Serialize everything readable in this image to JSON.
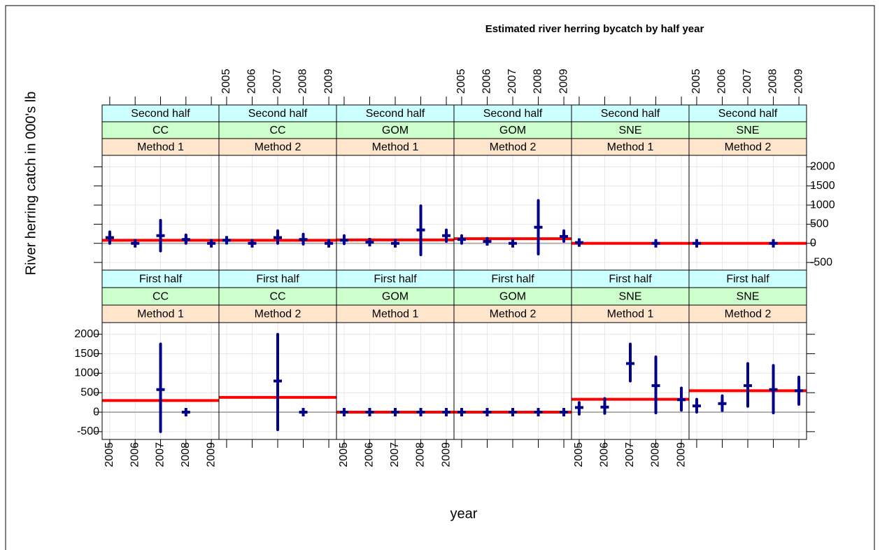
{
  "chart_data": {
    "type": "lattice",
    "title": "Estimated river herring bycatch by half year",
    "xlabel": "year",
    "ylabel": "River herring catch in 000's lb",
    "xlim": [
      2004.7,
      2009.3
    ],
    "xticks": [
      2005,
      2006,
      2007,
      2008,
      2009
    ],
    "ylim": [
      -700,
      2300
    ],
    "yticks": [
      -500,
      0,
      500,
      1000,
      1500,
      2000
    ],
    "grid": true,
    "point_color": "#00008b",
    "mean_color": "#ff0000",
    "zero_color": "#b0b0b0",
    "panels": [
      {
        "strips": [
          "Second half",
          "CC",
          "Method 1"
        ],
        "x": [
          2005,
          2006,
          2007,
          2008,
          2009
        ],
        "values": [
          150,
          0,
          200,
          100,
          0
        ],
        "lower": [
          0,
          0,
          -200,
          0,
          0
        ],
        "upper": [
          300,
          0,
          600,
          220,
          0
        ],
        "mean": 80
      },
      {
        "strips": [
          "Second half",
          "CC",
          "Method 2"
        ],
        "x": [
          2005,
          2006,
          2007,
          2008,
          2009
        ],
        "values": [
          80,
          0,
          150,
          100,
          0
        ],
        "lower": [
          20,
          0,
          0,
          -20,
          0
        ],
        "upper": [
          130,
          0,
          330,
          240,
          0
        ],
        "mean": 80
      },
      {
        "strips": [
          "Second half",
          "GOM",
          "Method 1"
        ],
        "x": [
          2005,
          2006,
          2007,
          2008,
          2009
        ],
        "values": [
          80,
          30,
          0,
          350,
          200
        ],
        "lower": [
          -10,
          30,
          0,
          -300,
          50
        ],
        "upper": [
          200,
          30,
          0,
          980,
          350
        ],
        "mean": 90
      },
      {
        "strips": [
          "Second half",
          "GOM",
          "Method 2"
        ],
        "x": [
          2005,
          2006,
          2007,
          2008,
          2009
        ],
        "values": [
          100,
          50,
          0,
          420,
          180
        ],
        "lower": [
          0,
          -20,
          0,
          -280,
          50
        ],
        "upper": [
          200,
          130,
          0,
          1120,
          330
        ],
        "mean": 120
      },
      {
        "strips": [
          "Second half",
          "SNE",
          "Method 1"
        ],
        "x": [
          2005,
          2008
        ],
        "values": [
          20,
          0
        ],
        "lower": [
          20,
          0
        ],
        "upper": [
          20,
          0
        ],
        "mean": 0
      },
      {
        "strips": [
          "Second half",
          "SNE",
          "Method 2"
        ],
        "x": [
          2005,
          2008
        ],
        "values": [
          0,
          0
        ],
        "lower": [
          0,
          0
        ],
        "upper": [
          0,
          0
        ],
        "mean": 0
      },
      {
        "strips": [
          "First half",
          "CC",
          "Method 1"
        ],
        "x": [
          2007,
          2008
        ],
        "values": [
          580,
          0
        ],
        "lower": [
          -500,
          0
        ],
        "upper": [
          1750,
          0
        ],
        "mean": 300
      },
      {
        "strips": [
          "First half",
          "CC",
          "Method 2"
        ],
        "x": [
          2007,
          2008
        ],
        "values": [
          800,
          0
        ],
        "lower": [
          -450,
          0
        ],
        "upper": [
          2000,
          0
        ],
        "mean": 380
      },
      {
        "strips": [
          "First half",
          "GOM",
          "Method 1"
        ],
        "x": [
          2005,
          2006,
          2007,
          2008,
          2009
        ],
        "values": [
          0,
          0,
          0,
          0,
          0
        ],
        "lower": [
          0,
          0,
          0,
          0,
          0
        ],
        "upper": [
          0,
          0,
          0,
          0,
          0
        ],
        "mean": 0
      },
      {
        "strips": [
          "First half",
          "GOM",
          "Method 2"
        ],
        "x": [
          2005,
          2006,
          2007,
          2008,
          2009
        ],
        "values": [
          0,
          0,
          0,
          0,
          0
        ],
        "lower": [
          0,
          0,
          0,
          0,
          0
        ],
        "upper": [
          0,
          0,
          0,
          0,
          0
        ],
        "mean": 0
      },
      {
        "strips": [
          "First half",
          "SNE",
          "Method 1"
        ],
        "x": [
          2005,
          2006,
          2007,
          2008,
          2009
        ],
        "values": [
          120,
          130,
          1250,
          680,
          320
        ],
        "lower": [
          -50,
          -30,
          800,
          -20,
          50
        ],
        "upper": [
          250,
          350,
          1750,
          1420,
          620
        ],
        "mean": 330
      },
      {
        "strips": [
          "First half",
          "SNE",
          "Method 2"
        ],
        "x": [
          2005,
          2006,
          2007,
          2008,
          2009
        ],
        "values": [
          160,
          220,
          680,
          580,
          550
        ],
        "lower": [
          0,
          40,
          150,
          -20,
          200
        ],
        "upper": [
          330,
          420,
          1250,
          1200,
          900
        ],
        "mean": 550
      }
    ]
  }
}
